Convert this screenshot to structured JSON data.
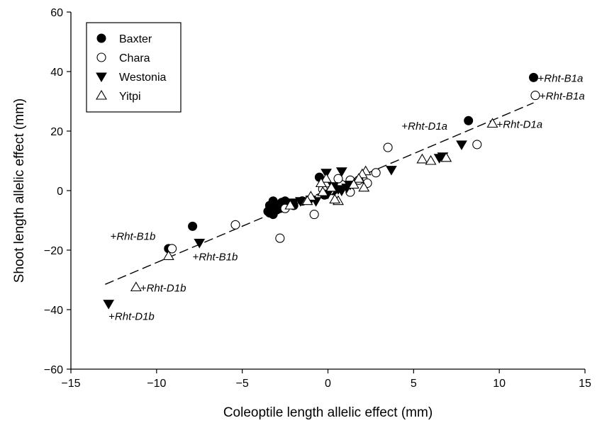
{
  "chart_data": {
    "type": "scatter",
    "title": "",
    "xlabel": "Coleoptile length allelic effect (mm)",
    "ylabel": "Shoot length allelic effect (mm)",
    "xlim": [
      -15,
      15
    ],
    "ylim": [
      -60,
      60
    ],
    "xticks": [
      -15,
      -10,
      -5,
      0,
      5,
      10,
      15
    ],
    "xtick_labels": [
      "−15",
      "−10",
      "−5",
      "0",
      "5",
      "10",
      "15"
    ],
    "yticks": [
      -60,
      -40,
      -20,
      0,
      20,
      40,
      60
    ],
    "ytick_labels": [
      "−60",
      "−40",
      "−20",
      "0",
      "20",
      "40",
      "60"
    ],
    "grid": false,
    "legend_position": "top-left",
    "series": [
      {
        "name": "Baxter",
        "marker": "filled-circle",
        "points": [
          [
            12.0,
            38.0
          ],
          [
            8.2,
            23.5
          ],
          [
            -7.9,
            -12.0
          ],
          [
            -9.3,
            -19.5
          ],
          [
            -3.5,
            -7.0
          ],
          [
            -3.4,
            -5.0
          ],
          [
            -3.3,
            -6.0
          ],
          [
            -3.2,
            -8.0
          ],
          [
            -3.1,
            -4.5
          ],
          [
            -3.0,
            -6.5
          ],
          [
            -2.9,
            -5.0
          ],
          [
            -2.8,
            -6.0
          ],
          [
            -2.7,
            -4.0
          ],
          [
            -2.6,
            -5.5
          ],
          [
            -3.2,
            -3.5
          ],
          [
            -2.5,
            -3.5
          ],
          [
            -0.5,
            4.5
          ],
          [
            0.3,
            0.0
          ],
          [
            -0.2,
            -1.5
          ],
          [
            0.8,
            2.0
          ],
          [
            -3.4,
            -7.5
          ],
          [
            -2.0,
            -5.0
          ]
        ]
      },
      {
        "name": "Chara",
        "marker": "open-circle",
        "points": [
          [
            12.1,
            32.0
          ],
          [
            8.7,
            15.5
          ],
          [
            3.5,
            14.5
          ],
          [
            -5.4,
            -11.5
          ],
          [
            -2.8,
            -16.0
          ],
          [
            -9.1,
            -19.5
          ],
          [
            -0.8,
            -8.0
          ],
          [
            2.8,
            6.0
          ],
          [
            2.3,
            2.5
          ],
          [
            1.3,
            3.5
          ],
          [
            1.3,
            -0.5
          ],
          [
            0.8,
            2.0
          ],
          [
            0.6,
            4.0
          ],
          [
            0.1,
            0.0
          ],
          [
            -0.3,
            0.5
          ],
          [
            1.8,
            3.5
          ],
          [
            -2.5,
            -6.0
          ],
          [
            -1.5,
            -3.5
          ]
        ]
      },
      {
        "name": "Westonia",
        "marker": "filled-triangle-down",
        "points": [
          [
            -12.8,
            -38.0
          ],
          [
            -7.5,
            -17.5
          ],
          [
            7.8,
            15.5
          ],
          [
            6.7,
            11.5
          ],
          [
            6.5,
            11.0
          ],
          [
            3.7,
            7.0
          ],
          [
            0.8,
            6.5
          ],
          [
            -0.1,
            6.0
          ],
          [
            0.3,
            1.5
          ],
          [
            0.6,
            0.5
          ],
          [
            0.8,
            0.0
          ],
          [
            1.1,
            1.0
          ],
          [
            1.3,
            2.0
          ],
          [
            -1.0,
            -3.0
          ],
          [
            -0.7,
            -3.5
          ],
          [
            -1.6,
            -3.5
          ],
          [
            -2.0,
            -4.0
          ],
          [
            0.0,
            -1.0
          ]
        ]
      },
      {
        "name": "Yitpi",
        "marker": "open-triangle-up",
        "points": [
          [
            9.6,
            22.5
          ],
          [
            -11.2,
            -32.5
          ],
          [
            -9.3,
            -22.0
          ],
          [
            5.5,
            10.5
          ],
          [
            6.0,
            10.0
          ],
          [
            6.9,
            11.0
          ],
          [
            2.2,
            6.5
          ],
          [
            2.0,
            5.5
          ],
          [
            1.8,
            4.0
          ],
          [
            2.1,
            1.0
          ],
          [
            0.2,
            1.0
          ],
          [
            -0.1,
            4.0
          ],
          [
            -0.3,
            -0.5
          ],
          [
            0.6,
            -3.5
          ],
          [
            0.4,
            -3.0
          ],
          [
            -1.0,
            -2.0
          ],
          [
            -0.4,
            2.5
          ],
          [
            -2.2,
            -5.0
          ],
          [
            -1.2,
            -3.5
          ],
          [
            1.5,
            2.0
          ]
        ]
      }
    ],
    "regression": {
      "style": "dashed",
      "x": [
        -13.0,
        12.0
      ],
      "y": [
        -31.5,
        29.5
      ]
    },
    "annotations": [
      {
        "prefix": "+",
        "gene": "Rht-B1a",
        "x": 12.0,
        "y": 38.0,
        "anchor": "right"
      },
      {
        "prefix": "+",
        "gene": "Rht-B1a",
        "x": 12.1,
        "y": 32.0,
        "anchor": "right"
      },
      {
        "prefix": "+",
        "gene": "Rht-D1a",
        "x": 4.3,
        "y": 20.5,
        "anchor": "text"
      },
      {
        "prefix": "+",
        "gene": "Rht-D1a",
        "x": 9.6,
        "y": 22.5,
        "anchor": "right"
      },
      {
        "prefix": "+",
        "gene": "Rht-B1b",
        "x": -12.7,
        "y": -16.5,
        "anchor": "text"
      },
      {
        "prefix": "+",
        "gene": "Rht-B1b",
        "x": -7.9,
        "y": -23.5,
        "anchor": "text"
      },
      {
        "prefix": "+",
        "gene": "Rht-D1b",
        "x": -11.2,
        "y": -32.5,
        "anchor": "right"
      },
      {
        "prefix": "+",
        "gene": "Rht-D1b",
        "x": -12.8,
        "y": -43.5,
        "anchor": "text"
      }
    ]
  }
}
